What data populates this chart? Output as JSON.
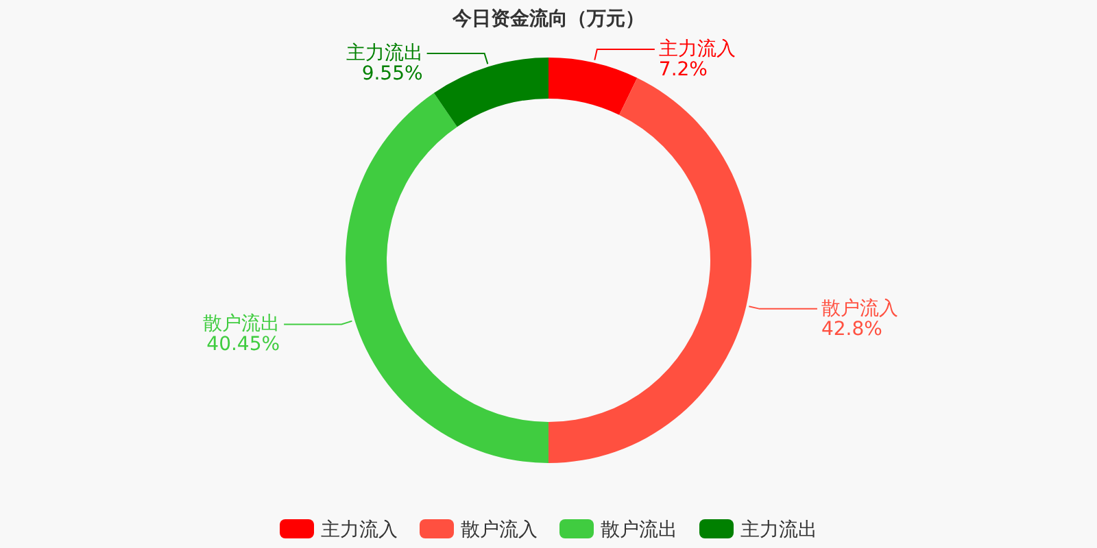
{
  "chart_data": {
    "type": "donut",
    "title": "今日资金流向（万元）",
    "categories": [
      "主力流入",
      "散户流入",
      "散户流出",
      "主力流出"
    ],
    "values": [
      7.2,
      42.8,
      40.45,
      9.55
    ],
    "colors": [
      "#ff0000",
      "#ff5040",
      "#40cc40",
      "#008000"
    ],
    "value_labels": [
      "7.2%",
      "42.8%",
      "40.45%",
      "9.55%"
    ],
    "legend": "bottom"
  }
}
